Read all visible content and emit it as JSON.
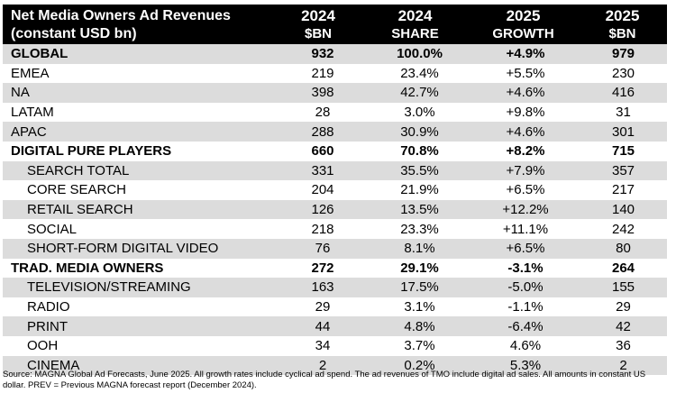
{
  "header": {
    "title_line1": "Net Media Owners Ad Revenues",
    "title_line2": "(constant USD bn)",
    "columns": [
      {
        "year": "2024",
        "sub": "$BN"
      },
      {
        "year": "2024",
        "sub": "SHARE"
      },
      {
        "year": "2025",
        "sub": "GROWTH"
      },
      {
        "year": "2025",
        "sub": "$BN"
      }
    ]
  },
  "rows": [
    {
      "label": "GLOBAL",
      "bn2024": "932",
      "share": "100.0%",
      "growth": "+4.9%",
      "bn2025": "979"
    },
    {
      "label": "EMEA",
      "bn2024": "219",
      "share": "23.4%",
      "growth": "+5.5%",
      "bn2025": "230"
    },
    {
      "label": "NA",
      "bn2024": "398",
      "share": "42.7%",
      "growth": "+4.6%",
      "bn2025": "416"
    },
    {
      "label": "LATAM",
      "bn2024": "28",
      "share": "3.0%",
      "growth": "+9.8%",
      "bn2025": "31"
    },
    {
      "label": "APAC",
      "bn2024": "288",
      "share": "30.9%",
      "growth": "+4.6%",
      "bn2025": "301"
    },
    {
      "label": "DIGITAL PURE PLAYERS",
      "bn2024": "660",
      "share": "70.8%",
      "growth": "+8.2%",
      "bn2025": "715"
    },
    {
      "label": "SEARCH TOTAL",
      "bn2024": "331",
      "share": "35.5%",
      "growth": "+7.9%",
      "bn2025": "357"
    },
    {
      "label": "CORE SEARCH",
      "bn2024": "204",
      "share": "21.9%",
      "growth": "+6.5%",
      "bn2025": "217"
    },
    {
      "label": "RETAIL SEARCH",
      "bn2024": "126",
      "share": "13.5%",
      "growth": "+12.2%",
      "bn2025": "140"
    },
    {
      "label": "SOCIAL",
      "bn2024": "218",
      "share": "23.3%",
      "growth": "+11.1%",
      "bn2025": "242"
    },
    {
      "label": "SHORT-FORM DIGITAL VIDEO",
      "bn2024": "76",
      "share": "8.1%",
      "growth": "+6.5%",
      "bn2025": "80"
    },
    {
      "label": "TRAD. MEDIA OWNERS",
      "bn2024": "272",
      "share": "29.1%",
      "growth": "-3.1%",
      "bn2025": "264"
    },
    {
      "label": "TELEVISION/STREAMING",
      "bn2024": "163",
      "share": "17.5%",
      "growth": "-5.0%",
      "bn2025": "155"
    },
    {
      "label": "RADIO",
      "bn2024": "29",
      "share": "3.1%",
      "growth": "-1.1%",
      "bn2025": "29"
    },
    {
      "label": "PRINT",
      "bn2024": "44",
      "share": "4.8%",
      "growth": "-6.4%",
      "bn2025": "42"
    },
    {
      "label": "OOH",
      "bn2024": "34",
      "share": "3.7%",
      "growth": "4.6%",
      "bn2025": "36"
    },
    {
      "label": "CINEMA",
      "bn2024": "2",
      "share": "0.2%",
      "growth": "5.3%",
      "bn2025": "2"
    }
  ],
  "source": "Source: MAGNA Global Ad Forecasts, June 2025. All growth rates include cyclical ad spend. The ad revenues of TMO include digital ad sales. All amounts in constant US dollar. PREV = Previous MAGNA forecast report (December 2024)."
}
